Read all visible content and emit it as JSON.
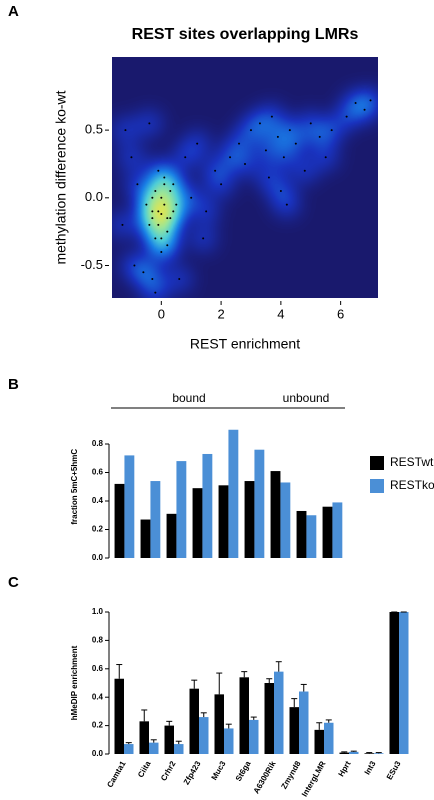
{
  "chart_data": [
    {
      "type": "density",
      "panel_label": "A",
      "title": "REST sites overlapping LMRs",
      "x_label": "REST enrichment",
      "y_label": "methylation difference ko-wt",
      "x": [
        -0.3,
        -0.1,
        0.1,
        0.3,
        0.0,
        -0.2,
        0.2,
        0.4,
        -0.4,
        0.0,
        0.1,
        -0.1,
        0.3,
        -0.3,
        0.2,
        0.0,
        -0.2,
        0.5,
        0.1,
        -0.1,
        0.0,
        0.2,
        -0.3,
        0.4,
        -0.5,
        -1.2,
        -1.0,
        -0.8,
        -1.3,
        -0.9,
        -0.6,
        -0.4,
        -0.3,
        0.8,
        1.0,
        1.2,
        1.5,
        1.8,
        2.0,
        2.3,
        2.6,
        3.0,
        3.3,
        3.5,
        3.7,
        3.9,
        4.1,
        4.3,
        4.5,
        4.8,
        5.0,
        5.3,
        5.7,
        6.2,
        6.5,
        6.8,
        7.0,
        4.2,
        3.6,
        2.8,
        1.4,
        0.6,
        -0.2,
        4.0,
        5.5
      ],
      "values": [
        -0.1,
        -0.2,
        -0.05,
        -0.15,
        0.0,
        0.05,
        -0.25,
        -0.1,
        -0.2,
        -0.3,
        0.1,
        -0.1,
        0.05,
        0.0,
        -0.15,
        -0.12,
        -0.3,
        -0.05,
        0.15,
        0.2,
        -0.4,
        -0.35,
        -0.15,
        0.1,
        -0.05,
        0.5,
        0.3,
        0.1,
        -0.2,
        -0.5,
        -0.55,
        0.55,
        -0.6,
        0.3,
        0.0,
        0.4,
        -0.1,
        0.2,
        0.1,
        0.3,
        0.4,
        0.5,
        0.55,
        0.35,
        0.6,
        0.45,
        0.3,
        0.5,
        0.4,
        0.2,
        0.55,
        0.45,
        0.5,
        0.6,
        0.7,
        0.65,
        0.72,
        -0.05,
        0.15,
        0.25,
        -0.3,
        -0.6,
        -0.7,
        0.05,
        0.3
      ],
      "xlim": [
        -1.65,
        7.25
      ],
      "xticks": [
        0,
        2,
        4,
        6
      ],
      "ylim": [
        -0.74,
        1.04
      ],
      "yticks": [
        -0.5,
        {
          "value": 0,
          "label": "0.0"
        },
        0.5
      ]
    },
    {
      "type": "bar",
      "panel_label": "B",
      "y_label": "fraction 5mC+5hmC",
      "annotations": [
        "bound",
        "unbound"
      ],
      "categories": [
        null,
        null,
        null,
        null,
        null,
        null,
        null,
        null,
        null
      ],
      "series": [
        {
          "name": "RESTwt",
          "color": "#000000",
          "values": [
            0.52,
            0.27,
            0.31,
            0.49,
            0.51,
            0.54,
            0.61,
            0.33,
            0.36
          ]
        },
        {
          "name": "RESTko",
          "color": "#4b8fd6",
          "values": [
            0.72,
            0.54,
            0.68,
            0.73,
            0.9,
            0.76,
            0.53,
            0.3,
            0.39
          ]
        }
      ],
      "ylim": [
        0,
        1.0
      ],
      "yticks": [
        {
          "value": 0,
          "label": "0.0"
        },
        0.2,
        0.4,
        0.6,
        0.8
      ]
    },
    {
      "type": "bar",
      "panel_label": "C",
      "y_label": "hMeDIP enrichment",
      "categories": [
        "Camta1",
        "Ciita",
        "Crhr2",
        "Zfp423",
        "Muc3",
        "St6ga",
        "A6300Rik",
        "Zmynd8",
        "IntergLMR",
        "Hprt",
        "Int3",
        "ESu3"
      ],
      "series": [
        {
          "color": "#000000",
          "values": [
            0.53,
            0.23,
            0.2,
            0.46,
            0.42,
            0.54,
            0.5,
            0.33,
            0.17,
            0.01,
            0.005,
            1.0
          ],
          "errors": [
            0.1,
            0.08,
            0.03,
            0.06,
            0.15,
            0.04,
            0.03,
            0.06,
            0.05,
            0.005,
            0.005,
            0
          ]
        },
        {
          "color": "#4b8fd6",
          "values": [
            0.07,
            0.08,
            0.07,
            0.26,
            0.18,
            0.24,
            0.58,
            0.44,
            0.22,
            0.015,
            0.005,
            1.0
          ],
          "errors": [
            0.01,
            0.02,
            0.02,
            0.03,
            0.03,
            0.02,
            0.07,
            0.05,
            0.02,
            0.005,
            0.005,
            0
          ]
        }
      ],
      "ylim": [
        0,
        1.0
      ],
      "yticks": [
        {
          "value": 0,
          "label": "0.0"
        },
        0.2,
        0.4,
        0.6,
        0.8,
        {
          "value": 1,
          "label": "1.0"
        }
      ]
    }
  ]
}
